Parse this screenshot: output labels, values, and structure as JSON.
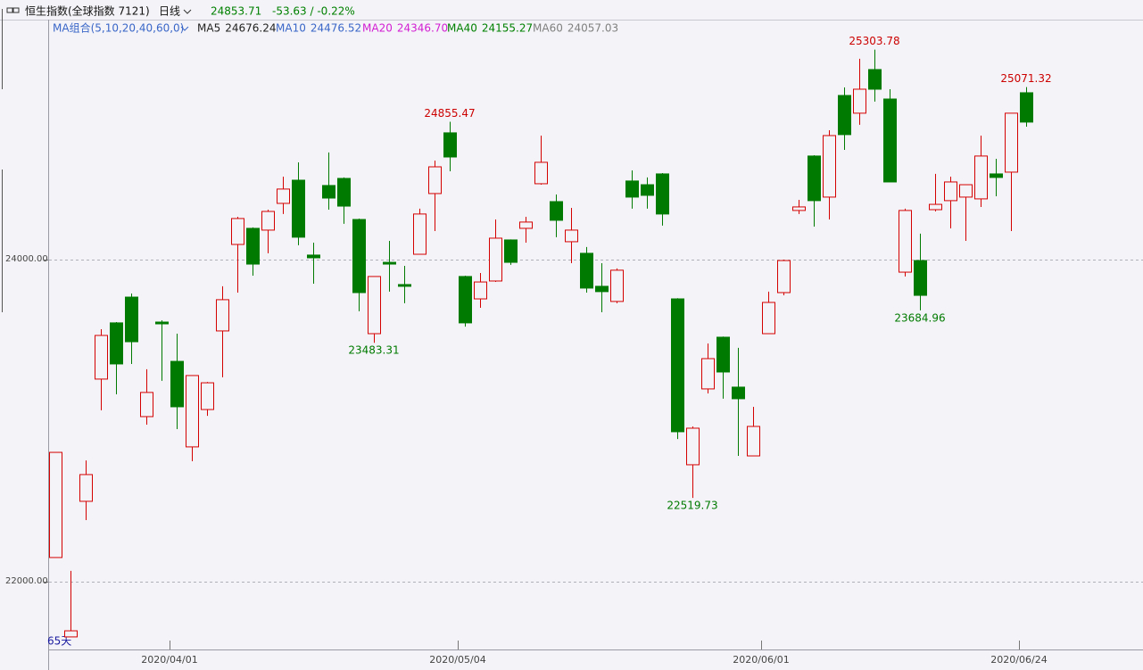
{
  "header": {
    "symbol": "恒生指数(全球指数 7121)",
    "period": "日线",
    "last": "24853.71",
    "change": "-53.63 / -0.22%"
  },
  "chart_data": {
    "type": "candlestick",
    "ma_title": "MA组合(5,10,20,40,60,0)",
    "ma_legend": [
      {
        "name": "MA5",
        "value": "24676.24",
        "color": "#222222"
      },
      {
        "name": "MA10",
        "value": "24476.52",
        "color": "#3a66c8"
      },
      {
        "name": "MA20",
        "value": "24346.70",
        "color": "#d21ed2"
      },
      {
        "name": "MA40",
        "value": "24155.27",
        "color": "#008000"
      },
      {
        "name": "MA60",
        "value": "24057.03",
        "color": "#808080"
      }
    ],
    "days_label": "65天",
    "categories": [
      null,
      null,
      null,
      null,
      null,
      null,
      null,
      null,
      "2020/04/01",
      null,
      null,
      null,
      null,
      null,
      null,
      null,
      null,
      null,
      null,
      null,
      null,
      null,
      null,
      null,
      null,
      null,
      null,
      "2020/05/04",
      null,
      null,
      null,
      null,
      null,
      null,
      null,
      null,
      null,
      null,
      null,
      null,
      null,
      null,
      null,
      null,
      null,
      null,
      null,
      "2020/06/01",
      null,
      null,
      null,
      null,
      null,
      null,
      null,
      null,
      null,
      null,
      null,
      null,
      null,
      null,
      null,
      null,
      "2020/06/24"
    ],
    "open": [
      22150,
      21657,
      22499,
      23258,
      23607,
      23767,
      23025,
      23612,
      23368,
      22837,
      23069,
      23557,
      24094,
      24194,
      24183,
      24349,
      24493,
      24028,
      24460,
      24504,
      24249,
      23540,
      23983,
      23845,
      24033,
      24410,
      24787,
      23895,
      23756,
      23867,
      24122,
      24194,
      24471,
      24360,
      24111,
      24039,
      23834,
      23740,
      24488,
      24465,
      24532,
      23756,
      22726,
      23197,
      23518,
      23208,
      22781,
      23540,
      23795,
      24305,
      24643,
      24388,
      25019,
      24909,
      25180,
      24997,
      23922,
      23994,
      24310,
      24366,
      24388,
      24377,
      24532,
      24543,
      25036
    ],
    "high": [
      22803,
      22067,
      22753,
      23568,
      23612,
      23789,
      23319,
      23623,
      23540,
      23280,
      23240,
      23834,
      24266,
      24200,
      24310,
      24515,
      24604,
      24105,
      24665,
      24510,
      24255,
      23895,
      24116,
      23961,
      24316,
      24615,
      24855.47,
      23900,
      23917,
      24249,
      24125,
      24266,
      24770,
      24404,
      24321,
      24078,
      23978,
      23945,
      24554,
      24510,
      24537,
      23760,
      22964,
      23479,
      23522,
      23452,
      23086,
      23801,
      23999,
      24371,
      24648,
      24803,
      25069,
      25247,
      25303.78,
      25058,
      24316,
      24161,
      24532,
      24515,
      24465,
      24770,
      24626,
      24909,
      25071.32
    ],
    "low": [
      22150,
      21657,
      22382,
      23064,
      23163,
      23352,
      22975,
      23247,
      22947,
      22748,
      23030,
      23269,
      23795,
      23900,
      24039,
      24283,
      24089,
      23850,
      24310,
      24222,
      23679,
      23483.31,
      23801,
      23729,
      24033,
      24177,
      24548,
      23584,
      23701,
      23861,
      23967,
      24105,
      24465,
      24139,
      23978,
      23795,
      23673,
      23729,
      24316,
      24316,
      24211,
      22886,
      22519.73,
      23169,
      23136,
      22781,
      22781,
      23540,
      23778,
      24283,
      24205,
      24249,
      24681,
      24837,
      24981,
      24482,
      23895,
      23684.96,
      24299,
      24194,
      24116,
      24327,
      24393,
      24177,
      24825
    ],
    "close": [
      22803,
      21695,
      22665,
      23529,
      23352,
      23490,
      23175,
      23601,
      23086,
      23280,
      23235,
      23751,
      24255,
      23972,
      24299,
      24438,
      24139,
      24011,
      24382,
      24332,
      23795,
      23895,
      23972,
      23834,
      24283,
      24576,
      24637,
      23607,
      23861,
      24133,
      23983,
      24233,
      24604,
      24244,
      24183,
      23823,
      23801,
      23934,
      24388,
      24399,
      24283,
      22931,
      22953,
      23385,
      23302,
      23136,
      22964,
      23734,
      23994,
      24327,
      24366,
      24770,
      24776,
      25058,
      25058,
      24482,
      24305,
      23778,
      24343,
      24482,
      24465,
      24643,
      24510,
      24909,
      24853.71
    ],
    "up_color": "#d40000",
    "down_color": "#007a00",
    "ylim": [
      21579,
      25490
    ],
    "yticks": [
      {
        "value": 22000,
        "label": "22000.00"
      },
      {
        "value": 24000,
        "label": "24000.00"
      }
    ],
    "grid": true
  }
}
